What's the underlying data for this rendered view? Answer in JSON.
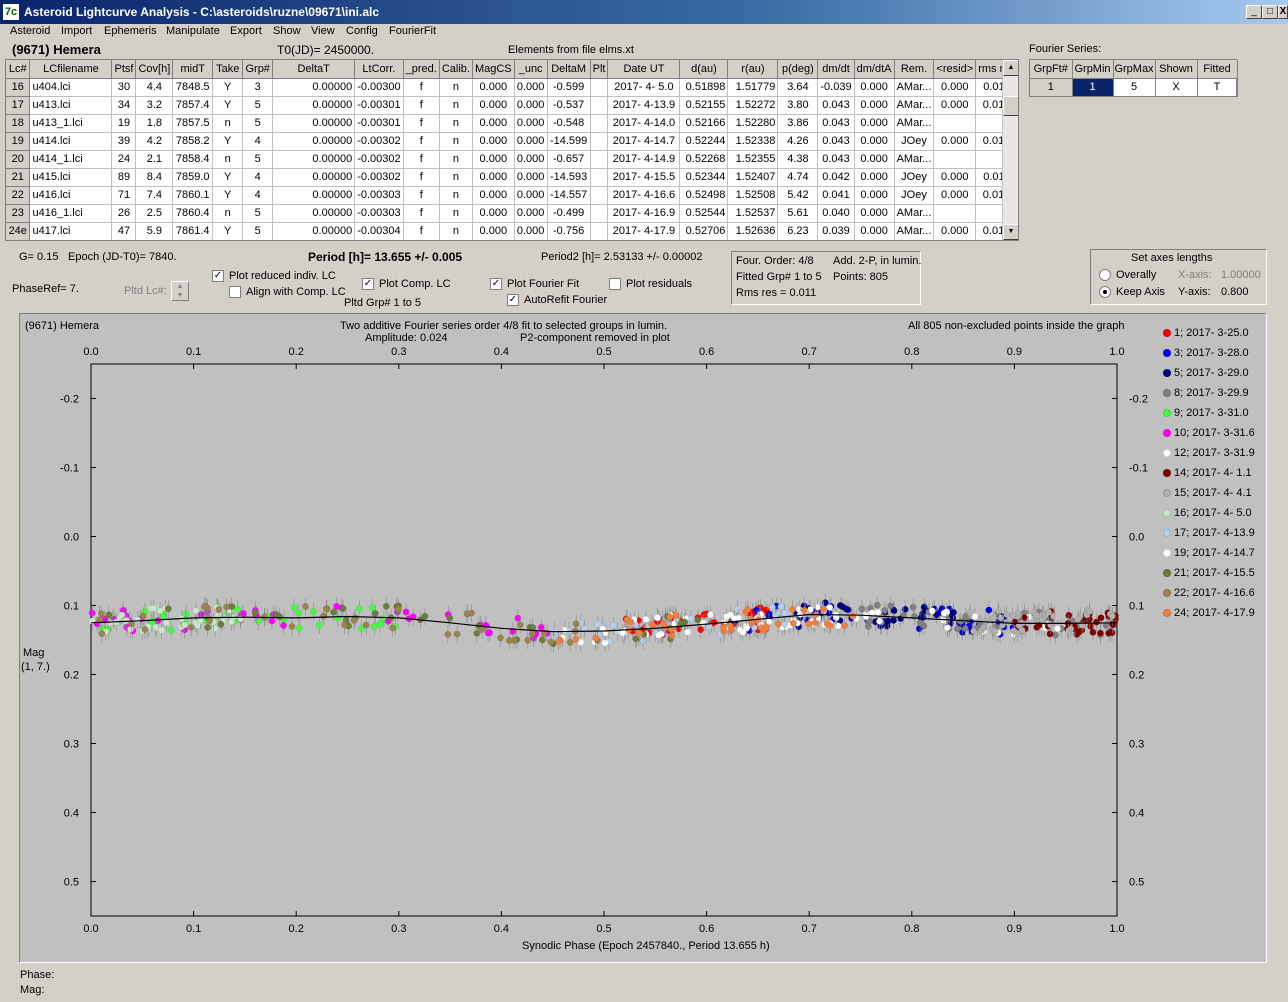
{
  "window": {
    "title": "Asteroid Lightcurve Analysis - C:\\asteroids\\ruzne\\09671\\ini.alc",
    "minimize": "_",
    "maximize": "□",
    "close": "X"
  },
  "menu": [
    "Asteroid",
    "Import",
    "Ephemeris",
    "Manipulate",
    "Export",
    "Show",
    "View",
    "Config",
    "FourierFit"
  ],
  "header": {
    "asteroid": "(9671) Hemera",
    "t0": "T0(JD)= 2450000.",
    "elements": "Elements from file elms.xt",
    "fourier_series": "Fourier Series:"
  },
  "table": {
    "columns": [
      "Lc#",
      "LCfilename",
      "Ptsf",
      "Cov[h]",
      "midT",
      "Take",
      "Grp#",
      "DeltaT",
      "LtCorr.",
      "_pred.",
      "Calib.",
      "MagCS",
      "_unc",
      "DeltaM",
      "Plt",
      "Date UT",
      "d(au)",
      "r(au)",
      "p(deg)",
      "dm/dt",
      "dm/dtA",
      "Rem.",
      "<resid>",
      "rms res"
    ],
    "rows": [
      [
        "16",
        "u404.lci",
        "30",
        "4.4",
        "7848.5",
        "Y",
        "3",
        "0.00000",
        "-0.00300",
        "f",
        "n",
        "0.000",
        "0.000",
        "-0.599",
        "",
        "2017- 4- 5.0",
        "0.51898",
        "1.51779",
        "3.64",
        "-0.039",
        "0.000",
        "AMar...",
        "0.000",
        "0.011"
      ],
      [
        "17",
        "u413.lci",
        "34",
        "3.2",
        "7857.4",
        "Y",
        "5",
        "0.00000",
        "-0.00301",
        "f",
        "n",
        "0.000",
        "0.000",
        "-0.537",
        "",
        "2017- 4-13.9",
        "0.52155",
        "1.52272",
        "3.80",
        "0.043",
        "0.000",
        "AMar...",
        "0.000",
        "0.010"
      ],
      [
        "18",
        "u413_1.lci",
        "19",
        "1.8",
        "7857.5",
        "n",
        "5",
        "0.00000",
        "-0.00301",
        "f",
        "n",
        "0.000",
        "0.000",
        "-0.548",
        "",
        "2017- 4-14.0",
        "0.52166",
        "1.52280",
        "3.86",
        "0.043",
        "0.000",
        "AMar...",
        "",
        ""
      ],
      [
        "19",
        "u414.lci",
        "39",
        "4.2",
        "7858.2",
        "Y",
        "4",
        "0.00000",
        "-0.00302",
        "f",
        "n",
        "0.000",
        "0.000",
        "-14.599",
        "",
        "2017- 4-14.7",
        "0.52244",
        "1.52338",
        "4.26",
        "0.043",
        "0.000",
        "JOey",
        "0.000",
        "0.012"
      ],
      [
        "20",
        "u414_1.lci",
        "24",
        "2.1",
        "7858.4",
        "n",
        "5",
        "0.00000",
        "-0.00302",
        "f",
        "n",
        "0.000",
        "0.000",
        "-0.657",
        "",
        "2017- 4-14.9",
        "0.52268",
        "1.52355",
        "4.38",
        "0.043",
        "0.000",
        "AMar...",
        "",
        ""
      ],
      [
        "21",
        "u415.lci",
        "89",
        "8.4",
        "7859.0",
        "Y",
        "4",
        "0.00000",
        "-0.00302",
        "f",
        "n",
        "0.000",
        "0.000",
        "-14.593",
        "",
        "2017- 4-15.5",
        "0.52344",
        "1.52407",
        "4.74",
        "0.042",
        "0.000",
        "JOey",
        "0.000",
        "0.011"
      ],
      [
        "22",
        "u416.lci",
        "71",
        "7.4",
        "7860.1",
        "Y",
        "4",
        "0.00000",
        "-0.00303",
        "f",
        "n",
        "0.000",
        "0.000",
        "-14.557",
        "",
        "2017- 4-16.6",
        "0.52498",
        "1.52508",
        "5.42",
        "0.041",
        "0.000",
        "JOey",
        "0.000",
        "0.012"
      ],
      [
        "23",
        "u416_1.lci",
        "26",
        "2.5",
        "7860.4",
        "n",
        "5",
        "0.00000",
        "-0.00303",
        "f",
        "n",
        "0.000",
        "0.000",
        "-0.499",
        "",
        "2017- 4-16.9",
        "0.52544",
        "1.52537",
        "5.61",
        "0.040",
        "0.000",
        "AMar...",
        "",
        ""
      ],
      [
        "24e",
        "u417.lci",
        "47",
        "5.9",
        "7861.4",
        "Y",
        "5",
        "0.00000",
        "-0.00304",
        "f",
        "n",
        "0.000",
        "0.000",
        "-0.756",
        "",
        "2017- 4-17.9",
        "0.52706",
        "1.52636",
        "6.23",
        "0.039",
        "0.000",
        "AMar...",
        "0.000",
        "0.010"
      ]
    ]
  },
  "fourier_table": {
    "columns": [
      "GrpFt#",
      "GrpMin",
      "GrpMax",
      "Shown",
      "Fitted"
    ],
    "row": [
      "1",
      "1",
      "5",
      "X",
      "T"
    ]
  },
  "info": {
    "g": "G= 0.15",
    "epoch": "Epoch (JD-T0)= 7840.",
    "period": "Period [h]= 13.655 +/- 0.005",
    "period2": "Period2 [h]= 2.53133 +/- 0.00002",
    "phaseref": "PhaseRef= 7.",
    "pltd_lc": "Pltd Lc#:",
    "pltd_grp": "Pltd Grp#  1   to   5"
  },
  "options": {
    "plot_reduced": "Plot reduced indiv. LC",
    "align_comp": "Align with Comp. LC",
    "plot_comp": "Plot Comp. LC",
    "plot_fourier": "Plot Fourier Fit",
    "autorefit": "AutoRefit Fourier",
    "plot_residuals": "Plot residuals"
  },
  "fourier_info": {
    "order": "Four. Order:  4/8",
    "add": "Add. 2-P, in lumin.",
    "fitted": "Fitted Grp# 1 to 5",
    "points": "Points: 805",
    "rms": "Rms res     = 0.011"
  },
  "axes_panel": {
    "title": "Set axes lengths",
    "overally": "Overally",
    "keep": "Keep Axis",
    "xaxis_label": "X-axis:",
    "xaxis_val": "1.00000",
    "yaxis_label": "Y-axis:",
    "yaxis_val": "0.800"
  },
  "plot": {
    "name": "(9671) Hemera",
    "desc1": "Two additive Fourier series order 4/8 fit to selected groups in lumin.",
    "desc2": "Amplitude: 0.024",
    "desc3": "P2-component removed in plot",
    "points_note": "All 805 non-excluded points inside the graph",
    "xlabel": "Synodic Phase (Epoch 2457840., Period 13.655 h)",
    "ylabel1": "Mag",
    "ylabel2": "(1, 7.)"
  },
  "chart_data": {
    "type": "scatter",
    "xlim": [
      0,
      1
    ],
    "ylim": [
      0.55,
      -0.25
    ],
    "y_inverted": true,
    "xticks": [
      "0.0",
      "0.1",
      "0.2",
      "0.3",
      "0.4",
      "0.5",
      "0.6",
      "0.7",
      "0.8",
      "0.9",
      "1.0"
    ],
    "yticks": [
      {
        "v": -0.2,
        "l": "-0.2"
      },
      {
        "v": -0.1,
        "l": "-0.1"
      },
      {
        "v": 0.0,
        "l": "0.0"
      },
      {
        "v": 0.1,
        "l": "0.1"
      },
      {
        "v": 0.2,
        "l": "0.2"
      },
      {
        "v": 0.3,
        "l": "0.3"
      },
      {
        "v": 0.4,
        "l": "0.4"
      },
      {
        "v": 0.5,
        "l": "0.5"
      }
    ],
    "fourier_fit": {
      "x": [
        0.0,
        0.05,
        0.1,
        0.15,
        0.2,
        0.25,
        0.3,
        0.35,
        0.4,
        0.45,
        0.5,
        0.55,
        0.6,
        0.65,
        0.7,
        0.75,
        0.8,
        0.85,
        0.9,
        0.95,
        1.0
      ],
      "y": [
        0.125,
        0.122,
        0.118,
        0.117,
        0.118,
        0.116,
        0.118,
        0.125,
        0.133,
        0.138,
        0.137,
        0.133,
        0.127,
        0.12,
        0.113,
        0.114,
        0.118,
        0.122,
        0.126,
        0.126,
        0.125
      ]
    },
    "series": [
      {
        "name": "1; 2017- 3-25.0",
        "color": "#ff0000",
        "x_range": [
          0.52,
          0.66
        ],
        "y": 0.115
      },
      {
        "name": "3; 2017- 3-28.0",
        "color": "#0000e0",
        "x_range": [
          0.62,
          0.92
        ],
        "y": 0.11
      },
      {
        "name": "5; 2017- 3-29.0",
        "color": "#000080",
        "x_range": [
          0.68,
          0.86
        ],
        "y": 0.105
      },
      {
        "name": "8; 2017- 3-29.9",
        "color": "#808080",
        "x_range": [
          0.75,
          1.0
        ],
        "y": 0.125
      },
      {
        "name": "9; 2017- 3-31.0",
        "color": "#40ff40",
        "x_range": [
          0.0,
          0.3
        ],
        "y": 0.12
      },
      {
        "name": "10; 2017- 3-31.6",
        "color": "#ff00ff",
        "x_range": [
          0.0,
          0.45
        ],
        "y": 0.125
      },
      {
        "name": "12; 2017- 3-31.9",
        "color": "#ffffff",
        "x_range": [
          0.62,
          0.95
        ],
        "y": 0.12
      },
      {
        "name": "14; 2017- 4- 1.1",
        "color": "#800000",
        "x_range": [
          0.9,
          1.0
        ],
        "y": 0.128
      },
      {
        "name": "15; 2017- 4- 4.1",
        "color": "#b0b0b0",
        "x_range": [
          0.85,
          1.0
        ],
        "y": 0.13
      },
      {
        "name": "16; 2017- 4- 5.0",
        "color": "#c8e8c8",
        "x_range": [
          0.0,
          0.15
        ],
        "y": 0.12
      },
      {
        "name": "17; 2017- 4-13.9",
        "color": "#b8d0f0",
        "x_range": [
          0.45,
          0.7
        ],
        "y": 0.13
      },
      {
        "name": "19; 2017- 4-14.7",
        "color": "#ffffff",
        "x_range": [
          0.45,
          0.75
        ],
        "y": 0.128
      },
      {
        "name": "21; 2017- 4-15.5",
        "color": "#6b7d3a",
        "x_range": [
          0.0,
          0.6
        ],
        "y": 0.125
      },
      {
        "name": "22; 2017- 4-16.6",
        "color": "#9a8450",
        "x_range": [
          0.0,
          0.5
        ],
        "y": 0.12
      },
      {
        "name": "24; 2017- 4-17.9",
        "color": "#f08040",
        "x_range": [
          0.45,
          0.75
        ],
        "y": 0.13
      }
    ]
  },
  "status": {
    "phase": "Phase:",
    "mag": "Mag:"
  }
}
